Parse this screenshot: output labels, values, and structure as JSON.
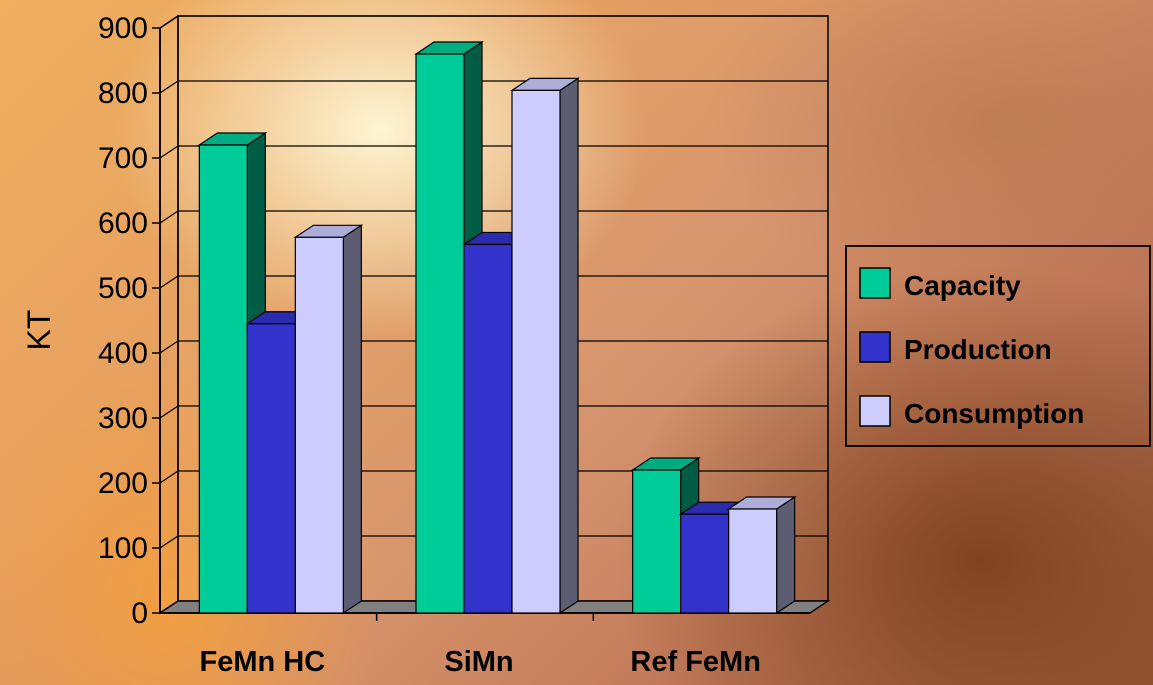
{
  "chart_data": {
    "type": "bar",
    "title": "",
    "xlabel": "",
    "ylabel": "KT",
    "ylim": [
      0,
      900
    ],
    "yticks": [
      0,
      100,
      200,
      300,
      400,
      500,
      600,
      700,
      800,
      900
    ],
    "grid": true,
    "legend_position": "right",
    "categories": [
      "FeMn HC",
      "SiMn",
      "Ref FeMn"
    ],
    "series": [
      {
        "name": "Capacity",
        "color": "#00cc99",
        "values": [
          720,
          860,
          220
        ]
      },
      {
        "name": "Production",
        "color": "#3333cc",
        "values": [
          445,
          567,
          152
        ]
      },
      {
        "name": "Consumption",
        "color": "#ccccff",
        "values": [
          578,
          804,
          160
        ]
      }
    ]
  }
}
